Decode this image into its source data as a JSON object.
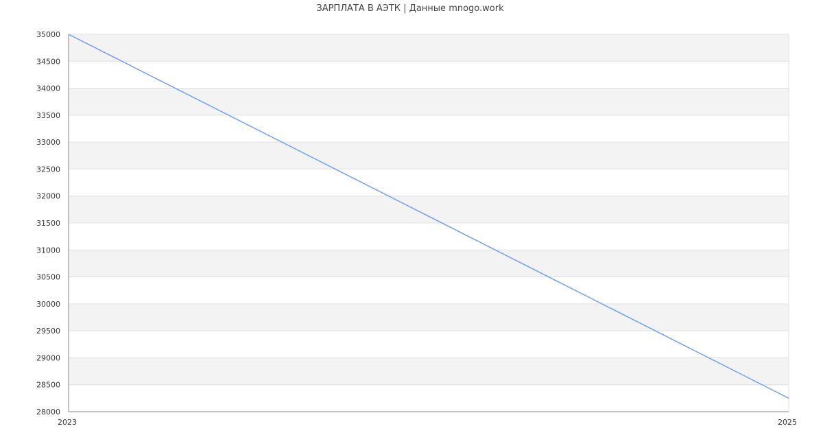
{
  "chart_data": {
    "type": "line",
    "title": "ЗАРПЛАТА В АЭТК | Данные mnogo.work",
    "xlabel": "",
    "ylabel": "",
    "x": [
      2023,
      2025
    ],
    "x_tick_labels": [
      "2023",
      "2025"
    ],
    "series": [
      {
        "values": [
          35000,
          28250
        ],
        "color": "#6f9ff5"
      }
    ],
    "xlim": [
      2023,
      2025
    ],
    "ylim": [
      28000,
      35000
    ],
    "y_ticks": [
      28000,
      28500,
      29000,
      29500,
      30000,
      30500,
      31000,
      31500,
      32000,
      32500,
      33000,
      33500,
      34000,
      34500,
      35000
    ],
    "y_tick_labels": [
      "28000",
      "28500",
      "29000",
      "29500",
      "30000",
      "30500",
      "31000",
      "31500",
      "32000",
      "32500",
      "33000",
      "33500",
      "34000",
      "34500",
      "35000"
    ],
    "grid": true,
    "band_color": "#f3f3f3",
    "grid_color": "#e0e0e0",
    "axis_color": "#888888",
    "legend": "none"
  }
}
